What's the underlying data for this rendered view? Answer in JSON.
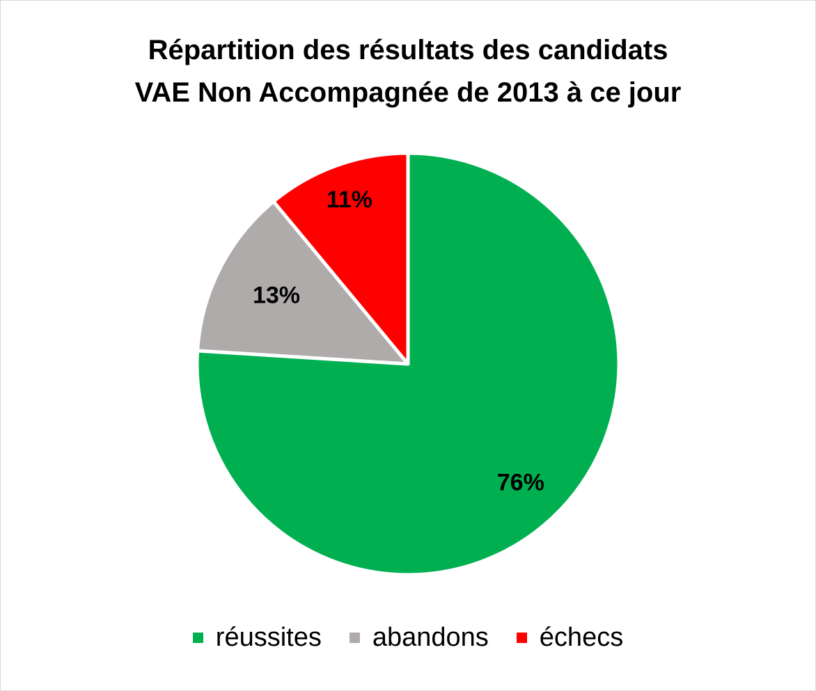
{
  "chart_data": {
    "type": "pie",
    "title": [
      "Répartition des résultats des candidats",
      "VAE Non Accompagnée de 2013 à ce jour"
    ],
    "slices": [
      {
        "name": "réussites",
        "value": 76,
        "label": "76%",
        "color": "#00b050"
      },
      {
        "name": "abandons",
        "value": 13,
        "label": "13%",
        "color": "#afabab"
      },
      {
        "name": "échecs",
        "value": 11,
        "label": "11%",
        "color": "#ff0000"
      }
    ],
    "legend_position": "bottom"
  }
}
